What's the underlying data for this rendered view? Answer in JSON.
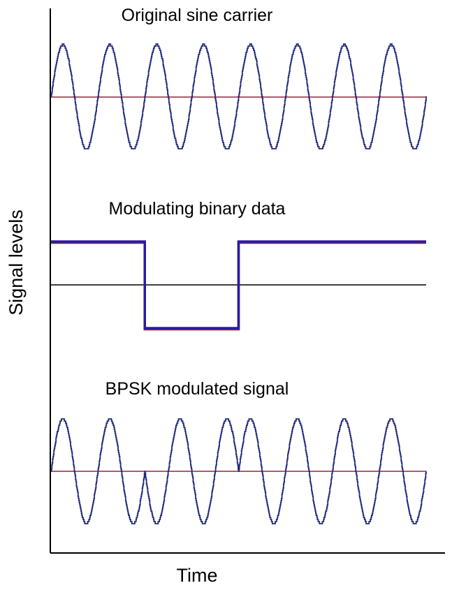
{
  "chart_data": {
    "type": "line",
    "xlabel": "Time",
    "ylabel": "Signal levels",
    "grid": false,
    "panels": [
      {
        "title": "Original sine carrier",
        "kind": "sine",
        "cycles": 8,
        "amplitude": 1,
        "series": [
          {
            "values_description": "y = sin(2π·8·t), t ∈ [0,1]"
          }
        ],
        "baseline": 0
      },
      {
        "title": "Modulating binary data",
        "kind": "binary",
        "x": [
          0,
          0.25,
          0.25,
          0.5,
          0.5,
          1
        ],
        "bits": [
          1,
          0,
          1
        ],
        "bit_boundaries": [
          0,
          0.25,
          0.5,
          1
        ],
        "levels": {
          "1": 1,
          "0": -1
        },
        "baseline": 0
      },
      {
        "title": "BPSK modulated signal",
        "kind": "bpsk",
        "cycles": 8,
        "amplitude": 1,
        "phase_flips_at": [
          0.25,
          0.5
        ],
        "baseline": 0
      }
    ]
  },
  "colors": {
    "wave": "#1f2a7a",
    "baseline": "#8b2a3a",
    "data": "#2a1aa8",
    "data_underline": "#a0242c",
    "axis": "#000000"
  }
}
